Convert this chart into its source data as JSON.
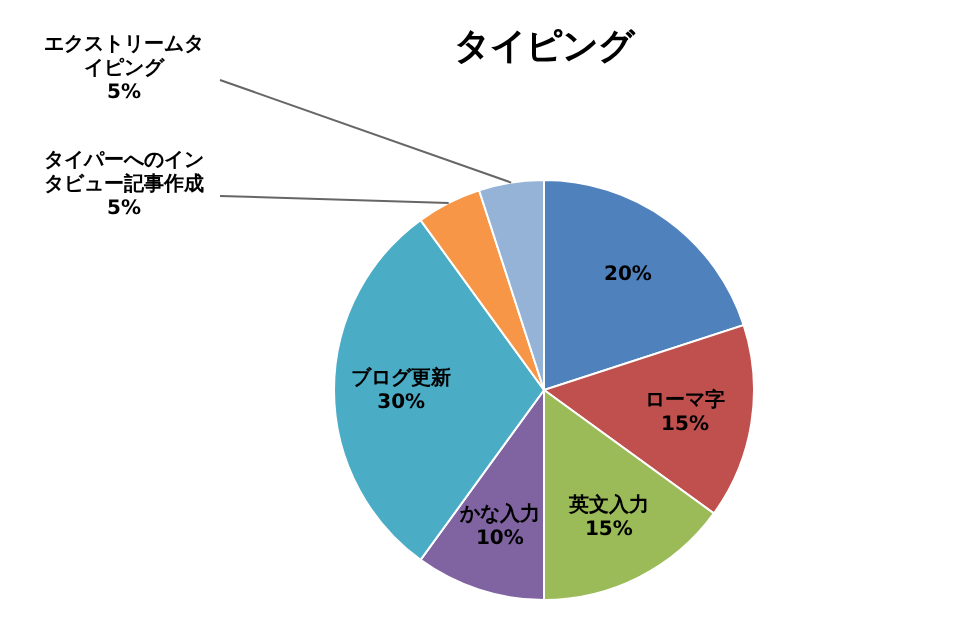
{
  "chart_data": {
    "type": "pie",
    "title": "タイピング",
    "categories": [
      null,
      "ローマ字",
      "英文入力",
      "かな入力",
      "ブログ更新",
      "タイパーへのインタビュー記事作成",
      "エクストリームタイピング"
    ],
    "values": [
      20,
      15,
      15,
      10,
      30,
      5,
      5
    ],
    "colors": [
      "#4f81bd",
      "#c0504d",
      "#9bbb59",
      "#8064a2",
      "#4bacc6",
      "#f79646",
      "#95b3d7"
    ],
    "value_labels": [
      "20%",
      "15%",
      "15%",
      "10%",
      "30%",
      "5%",
      "5%"
    ]
  }
}
